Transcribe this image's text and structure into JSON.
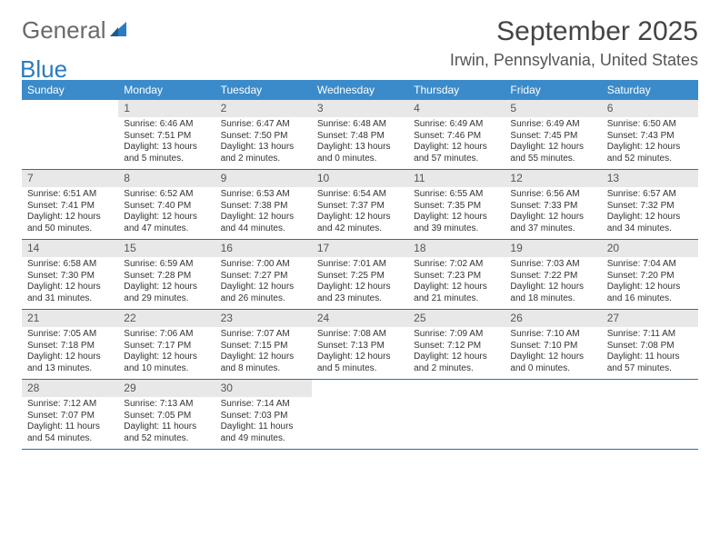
{
  "logo": {
    "text1": "General",
    "text2": "Blue"
  },
  "title": "September 2025",
  "location": "Irwin, Pennsylvania, United States",
  "colors": {
    "header_bg": "#3b8bca",
    "header_text": "#ffffff",
    "daynum_bg": "#e8e8e8",
    "border": "#2a6fa8",
    "logo_gray": "#6a6a6a",
    "logo_blue": "#2a7bbf"
  },
  "weekdays": [
    "Sunday",
    "Monday",
    "Tuesday",
    "Wednesday",
    "Thursday",
    "Friday",
    "Saturday"
  ],
  "weeks": [
    [
      {
        "n": "",
        "sr": "",
        "ss": "",
        "dl": ""
      },
      {
        "n": "1",
        "sr": "Sunrise: 6:46 AM",
        "ss": "Sunset: 7:51 PM",
        "dl": "Daylight: 13 hours and 5 minutes."
      },
      {
        "n": "2",
        "sr": "Sunrise: 6:47 AM",
        "ss": "Sunset: 7:50 PM",
        "dl": "Daylight: 13 hours and 2 minutes."
      },
      {
        "n": "3",
        "sr": "Sunrise: 6:48 AM",
        "ss": "Sunset: 7:48 PM",
        "dl": "Daylight: 13 hours and 0 minutes."
      },
      {
        "n": "4",
        "sr": "Sunrise: 6:49 AM",
        "ss": "Sunset: 7:46 PM",
        "dl": "Daylight: 12 hours and 57 minutes."
      },
      {
        "n": "5",
        "sr": "Sunrise: 6:49 AM",
        "ss": "Sunset: 7:45 PM",
        "dl": "Daylight: 12 hours and 55 minutes."
      },
      {
        "n": "6",
        "sr": "Sunrise: 6:50 AM",
        "ss": "Sunset: 7:43 PM",
        "dl": "Daylight: 12 hours and 52 minutes."
      }
    ],
    [
      {
        "n": "7",
        "sr": "Sunrise: 6:51 AM",
        "ss": "Sunset: 7:41 PM",
        "dl": "Daylight: 12 hours and 50 minutes."
      },
      {
        "n": "8",
        "sr": "Sunrise: 6:52 AM",
        "ss": "Sunset: 7:40 PM",
        "dl": "Daylight: 12 hours and 47 minutes."
      },
      {
        "n": "9",
        "sr": "Sunrise: 6:53 AM",
        "ss": "Sunset: 7:38 PM",
        "dl": "Daylight: 12 hours and 44 minutes."
      },
      {
        "n": "10",
        "sr": "Sunrise: 6:54 AM",
        "ss": "Sunset: 7:37 PM",
        "dl": "Daylight: 12 hours and 42 minutes."
      },
      {
        "n": "11",
        "sr": "Sunrise: 6:55 AM",
        "ss": "Sunset: 7:35 PM",
        "dl": "Daylight: 12 hours and 39 minutes."
      },
      {
        "n": "12",
        "sr": "Sunrise: 6:56 AM",
        "ss": "Sunset: 7:33 PM",
        "dl": "Daylight: 12 hours and 37 minutes."
      },
      {
        "n": "13",
        "sr": "Sunrise: 6:57 AM",
        "ss": "Sunset: 7:32 PM",
        "dl": "Daylight: 12 hours and 34 minutes."
      }
    ],
    [
      {
        "n": "14",
        "sr": "Sunrise: 6:58 AM",
        "ss": "Sunset: 7:30 PM",
        "dl": "Daylight: 12 hours and 31 minutes."
      },
      {
        "n": "15",
        "sr": "Sunrise: 6:59 AM",
        "ss": "Sunset: 7:28 PM",
        "dl": "Daylight: 12 hours and 29 minutes."
      },
      {
        "n": "16",
        "sr": "Sunrise: 7:00 AM",
        "ss": "Sunset: 7:27 PM",
        "dl": "Daylight: 12 hours and 26 minutes."
      },
      {
        "n": "17",
        "sr": "Sunrise: 7:01 AM",
        "ss": "Sunset: 7:25 PM",
        "dl": "Daylight: 12 hours and 23 minutes."
      },
      {
        "n": "18",
        "sr": "Sunrise: 7:02 AM",
        "ss": "Sunset: 7:23 PM",
        "dl": "Daylight: 12 hours and 21 minutes."
      },
      {
        "n": "19",
        "sr": "Sunrise: 7:03 AM",
        "ss": "Sunset: 7:22 PM",
        "dl": "Daylight: 12 hours and 18 minutes."
      },
      {
        "n": "20",
        "sr": "Sunrise: 7:04 AM",
        "ss": "Sunset: 7:20 PM",
        "dl": "Daylight: 12 hours and 16 minutes."
      }
    ],
    [
      {
        "n": "21",
        "sr": "Sunrise: 7:05 AM",
        "ss": "Sunset: 7:18 PM",
        "dl": "Daylight: 12 hours and 13 minutes."
      },
      {
        "n": "22",
        "sr": "Sunrise: 7:06 AM",
        "ss": "Sunset: 7:17 PM",
        "dl": "Daylight: 12 hours and 10 minutes."
      },
      {
        "n": "23",
        "sr": "Sunrise: 7:07 AM",
        "ss": "Sunset: 7:15 PM",
        "dl": "Daylight: 12 hours and 8 minutes."
      },
      {
        "n": "24",
        "sr": "Sunrise: 7:08 AM",
        "ss": "Sunset: 7:13 PM",
        "dl": "Daylight: 12 hours and 5 minutes."
      },
      {
        "n": "25",
        "sr": "Sunrise: 7:09 AM",
        "ss": "Sunset: 7:12 PM",
        "dl": "Daylight: 12 hours and 2 minutes."
      },
      {
        "n": "26",
        "sr": "Sunrise: 7:10 AM",
        "ss": "Sunset: 7:10 PM",
        "dl": "Daylight: 12 hours and 0 minutes."
      },
      {
        "n": "27",
        "sr": "Sunrise: 7:11 AM",
        "ss": "Sunset: 7:08 PM",
        "dl": "Daylight: 11 hours and 57 minutes."
      }
    ],
    [
      {
        "n": "28",
        "sr": "Sunrise: 7:12 AM",
        "ss": "Sunset: 7:07 PM",
        "dl": "Daylight: 11 hours and 54 minutes."
      },
      {
        "n": "29",
        "sr": "Sunrise: 7:13 AM",
        "ss": "Sunset: 7:05 PM",
        "dl": "Daylight: 11 hours and 52 minutes."
      },
      {
        "n": "30",
        "sr": "Sunrise: 7:14 AM",
        "ss": "Sunset: 7:03 PM",
        "dl": "Daylight: 11 hours and 49 minutes."
      },
      {
        "n": "",
        "sr": "",
        "ss": "",
        "dl": ""
      },
      {
        "n": "",
        "sr": "",
        "ss": "",
        "dl": ""
      },
      {
        "n": "",
        "sr": "",
        "ss": "",
        "dl": ""
      },
      {
        "n": "",
        "sr": "",
        "ss": "",
        "dl": ""
      }
    ]
  ]
}
